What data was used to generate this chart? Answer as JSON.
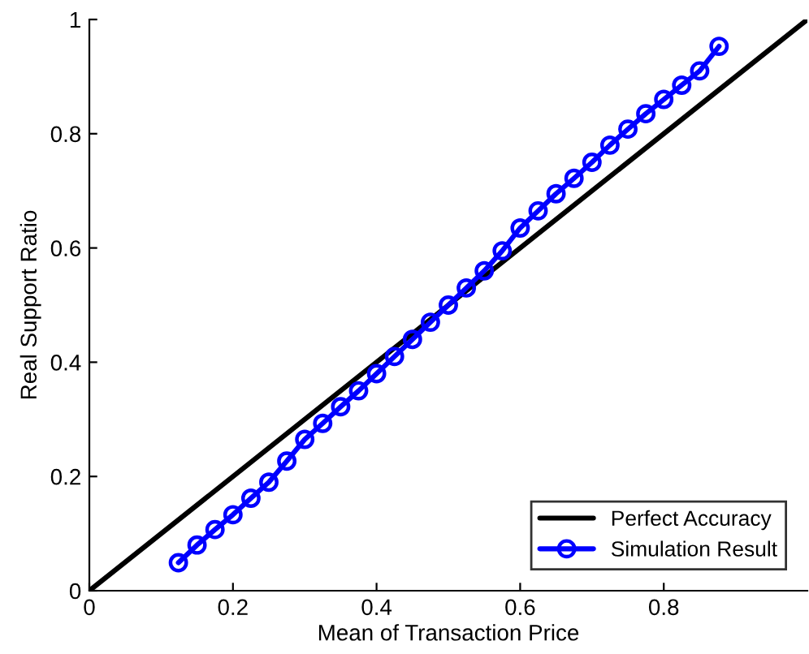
{
  "chart_data": {
    "type": "line",
    "xlabel": "Mean of Transaction Price",
    "ylabel": "Real Support Ratio",
    "series": [
      {
        "name": "Perfect Accuracy",
        "color": "#000000",
        "marker": "none",
        "x": [
          0,
          1
        ],
        "values": [
          0,
          1
        ]
      },
      {
        "name": "Simulation Result",
        "color": "#0000ff",
        "marker": "circle",
        "x": [
          0.124,
          0.15,
          0.175,
          0.2,
          0.225,
          0.25,
          0.275,
          0.3,
          0.325,
          0.35,
          0.375,
          0.4,
          0.425,
          0.45,
          0.475,
          0.5,
          0.525,
          0.55,
          0.575,
          0.6,
          0.625,
          0.65,
          0.675,
          0.7,
          0.725,
          0.75,
          0.775,
          0.8,
          0.825,
          0.85,
          0.877
        ],
        "values": [
          0.049,
          0.08,
          0.107,
          0.133,
          0.162,
          0.19,
          0.227,
          0.265,
          0.293,
          0.322,
          0.35,
          0.38,
          0.41,
          0.44,
          0.47,
          0.5,
          0.53,
          0.56,
          0.595,
          0.635,
          0.665,
          0.695,
          0.722,
          0.75,
          0.78,
          0.808,
          0.835,
          0.86,
          0.885,
          0.91,
          0.953
        ]
      }
    ],
    "xlim": [
      0,
      1
    ],
    "ylim": [
      0,
      1
    ],
    "xticks": [
      0,
      0.2,
      0.4,
      0.6,
      0.8
    ],
    "yticks": [
      0,
      0.2,
      0.4,
      0.6,
      0.8,
      1
    ],
    "grid": false,
    "legend": "bottom right",
    "line_style": "solid"
  }
}
